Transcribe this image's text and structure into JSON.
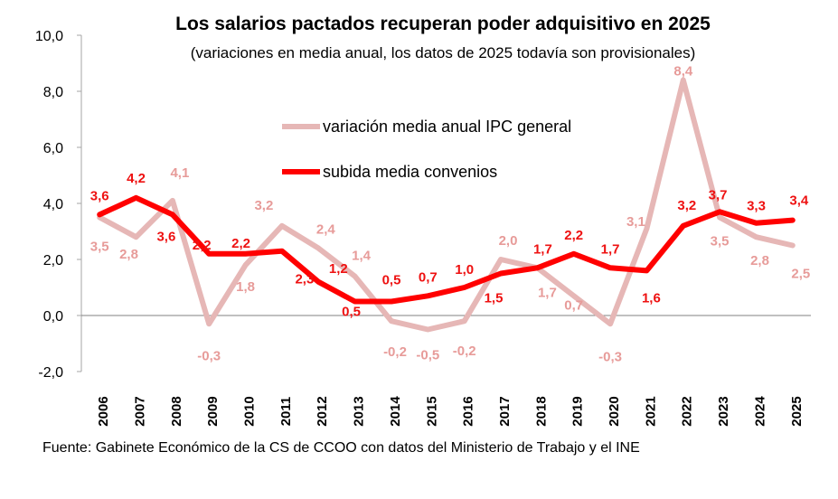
{
  "chart_data": {
    "type": "line",
    "title": "Los salarios pactados recuperan poder adquisitivo en 2025",
    "subtitle": "(variaciones en media anual, los datos de 2025 todavía son provisionales)",
    "categories": [
      "2006",
      "2007",
      "2008",
      "2009",
      "2010",
      "2011",
      "2012",
      "2013",
      "2014",
      "2015",
      "2016",
      "2017",
      "2018",
      "2019",
      "2020",
      "2021",
      "2022",
      "2023",
      "2024",
      "2025"
    ],
    "ylim": [
      -2.0,
      10.0
    ],
    "yticks": [
      10.0,
      8.0,
      6.0,
      4.0,
      2.0,
      0.0,
      -2.0
    ],
    "ytick_labels": [
      "10,0",
      "8,0",
      "6,0",
      "4,0",
      "2,0",
      "0,0",
      "-2,0"
    ],
    "series": [
      {
        "name": "variación media anual IPC general",
        "color": "#e6b7b6",
        "label_color": "#e79b99",
        "values": [
          3.5,
          2.8,
          4.1,
          -0.3,
          1.8,
          3.2,
          2.4,
          1.4,
          -0.2,
          -0.5,
          -0.2,
          2.0,
          1.7,
          0.7,
          -0.3,
          3.1,
          8.4,
          3.5,
          2.8,
          2.5
        ],
        "labels": [
          "3,5",
          "2,8",
          "4,1",
          "-0,3",
          "1,8",
          "3,2",
          "2,4",
          "1,4",
          "-0,2",
          "-0,5",
          "-0,2",
          "2,0",
          "1,7",
          "0,7",
          "-0,3",
          "3,1",
          "8,4",
          "3,5",
          "2,8",
          "2,5"
        ]
      },
      {
        "name": "subida media convenios",
        "color": "#ff0000",
        "label_color": "#ee1111",
        "values": [
          3.6,
          4.2,
          3.6,
          2.2,
          2.2,
          2.3,
          1.2,
          0.5,
          0.5,
          0.7,
          1.0,
          1.5,
          1.7,
          2.2,
          1.7,
          1.6,
          3.2,
          3.7,
          3.3,
          3.4
        ],
        "labels": [
          "3,6",
          "4,2",
          "3,6",
          "2,2",
          "2,2",
          "2,3",
          "1,2",
          "0,5",
          "0,5",
          "0,7",
          "1,0",
          "1,5",
          "1,7",
          "2,2",
          "1,7",
          "1,6",
          "3,2",
          "3,7",
          "3,3",
          "3,4"
        ]
      }
    ]
  },
  "source": "Fuente: Gabinete Económico de la CS de CCOO con datos del Ministerio de Trabajo y el INE"
}
